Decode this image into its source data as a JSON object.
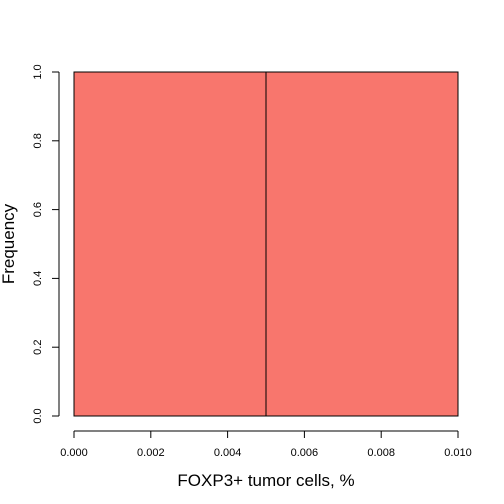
{
  "chart_data": {
    "type": "bar",
    "bins": [
      {
        "x0": 0.0,
        "x1": 0.005,
        "count": 1
      },
      {
        "x0": 0.005,
        "x1": 0.01,
        "count": 1
      }
    ],
    "xlabel": "FOXP3+ tumor cells, %",
    "ylabel": "Frequency",
    "xlim": [
      0,
      0.01
    ],
    "ylim": [
      0,
      1
    ],
    "x_ticks": [
      "0.000",
      "0.002",
      "0.004",
      "0.006",
      "0.008",
      "0.010"
    ],
    "y_ticks": [
      "0.0",
      "0.2",
      "0.4",
      "0.6",
      "0.8",
      "1.0"
    ],
    "bar_color": "#F8766D",
    "grid": false
  }
}
